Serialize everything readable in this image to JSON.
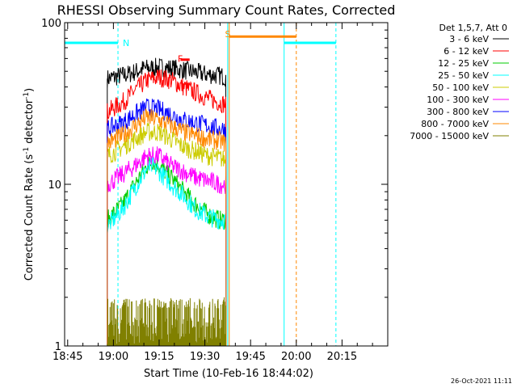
{
  "chart_data": {
    "type": "line",
    "title": "RHESSI Observing Summary Count Rates, Corrected",
    "xlabel": "Start Time (10-Feb-16 18:44:02)",
    "ylabel": "Corrected Count Rate (s",
    "ylabel_sup": "-1",
    "ylabel_tail": " detector",
    "ylabel_tail_sup": "-1",
    "ylabel_end": ")",
    "y_scale": "log",
    "ylim": [
      1,
      100
    ],
    "xlim_min": [
      -1,
      105
    ],
    "x_ticks_min": [
      0,
      15,
      30,
      45,
      60,
      75,
      90
    ],
    "x_tick_labels": [
      "18:45",
      "19:00",
      "19:15",
      "19:30",
      "19:45",
      "20:00",
      "20:15"
    ],
    "y_ticks": [
      1,
      10,
      100
    ],
    "y_tick_labels": [
      "1",
      "10",
      "100"
    ],
    "legend_title": "Det 1,5,7, Att 0",
    "legend_position": "right",
    "footer_date": "26-Oct-2021 11:11",
    "series": [
      {
        "name": "3 - 6 keV",
        "color": "#000000",
        "min": [
          [
            -1,
            null
          ],
          [
            13,
            null
          ],
          [
            13,
            45
          ],
          [
            20,
            48
          ],
          [
            25,
            52
          ],
          [
            30,
            53
          ],
          [
            35,
            52
          ],
          [
            40,
            50
          ],
          [
            45,
            48
          ],
          [
            50,
            47
          ],
          [
            52,
            46
          ],
          [
            52,
            null
          ]
        ]
      },
      {
        "name": "6 - 12 keV",
        "color": "#ff0000",
        "min": [
          [
            13,
            28
          ],
          [
            18,
            32
          ],
          [
            22,
            38
          ],
          [
            26,
            44
          ],
          [
            30,
            46
          ],
          [
            34,
            44
          ],
          [
            38,
            40
          ],
          [
            42,
            37
          ],
          [
            46,
            34
          ],
          [
            50,
            32
          ],
          [
            52,
            31
          ]
        ]
      },
      {
        "name": "12 - 25 keV",
        "color": "#00cc00",
        "min": [
          [
            13,
            6
          ],
          [
            18,
            7.5
          ],
          [
            22,
            10
          ],
          [
            26,
            13
          ],
          [
            28,
            14
          ],
          [
            30,
            13
          ],
          [
            34,
            11
          ],
          [
            38,
            9
          ],
          [
            42,
            7.5
          ],
          [
            46,
            6.5
          ],
          [
            50,
            6
          ],
          [
            52,
            6
          ]
        ]
      },
      {
        "name": "25 - 50 keV",
        "color": "#00ffff",
        "min": [
          [
            13,
            5.5
          ],
          [
            18,
            7
          ],
          [
            22,
            9.5
          ],
          [
            26,
            12.5
          ],
          [
            28,
            13
          ],
          [
            30,
            12
          ],
          [
            34,
            10
          ],
          [
            38,
            8.5
          ],
          [
            42,
            7
          ],
          [
            46,
            6.3
          ],
          [
            50,
            6
          ],
          [
            52,
            6
          ]
        ]
      },
      {
        "name": "50 - 100 keV",
        "color": "#cccc00",
        "min": [
          [
            13,
            15
          ],
          [
            18,
            17
          ],
          [
            22,
            19
          ],
          [
            26,
            21
          ],
          [
            30,
            21
          ],
          [
            34,
            19
          ],
          [
            38,
            17
          ],
          [
            42,
            16
          ],
          [
            46,
            15
          ],
          [
            50,
            14.5
          ],
          [
            52,
            14
          ]
        ]
      },
      {
        "name": "100 - 300 keV",
        "color": "#ff00ff",
        "min": [
          [
            13,
            10
          ],
          [
            18,
            11.5
          ],
          [
            22,
            13
          ],
          [
            26,
            15
          ],
          [
            30,
            15
          ],
          [
            34,
            13
          ],
          [
            38,
            12
          ],
          [
            42,
            11
          ],
          [
            46,
            10.5
          ],
          [
            50,
            10
          ],
          [
            52,
            10
          ]
        ]
      },
      {
        "name": "300 - 800 keV",
        "color": "#0000ff",
        "min": [
          [
            13,
            22
          ],
          [
            18,
            24
          ],
          [
            22,
            27
          ],
          [
            26,
            30
          ],
          [
            30,
            29
          ],
          [
            34,
            27
          ],
          [
            38,
            25
          ],
          [
            42,
            24
          ],
          [
            46,
            23
          ],
          [
            50,
            22
          ],
          [
            52,
            22
          ]
        ]
      },
      {
        "name": "800 - 7000 keV",
        "color": "#ff8800",
        "min": [
          [
            13,
            18
          ],
          [
            18,
            20
          ],
          [
            22,
            23
          ],
          [
            26,
            26
          ],
          [
            30,
            25
          ],
          [
            34,
            23
          ],
          [
            38,
            21
          ],
          [
            42,
            20
          ],
          [
            46,
            19
          ],
          [
            50,
            18.5
          ],
          [
            52,
            18
          ]
        ]
      },
      {
        "name": "7000 - 15000 keV",
        "color": "#808000",
        "min": [
          [
            13,
            1.5
          ],
          [
            20,
            1.7
          ],
          [
            28,
            2.2
          ],
          [
            34,
            1.6
          ],
          [
            40,
            1.5
          ],
          [
            46,
            1.4
          ],
          [
            52,
            1.3
          ]
        ]
      }
    ],
    "annotations": [
      {
        "label": "N",
        "color": "#00ffff",
        "x_min": 16.5,
        "y": 75
      },
      {
        "label": "F",
        "color": "#ff0000",
        "x_min": 34.5,
        "y": 60
      },
      {
        "label": "S",
        "color": "#ff8800",
        "x_min": 50,
        "y": 85
      }
    ],
    "night_bars": [
      {
        "color": "#00ffff",
        "x": [
          -1,
          16.5
        ],
        "y": 75
      },
      {
        "color": "#00ffff",
        "x": [
          71,
          88
        ],
        "y": 75
      }
    ],
    "saa_bars": [
      {
        "color": "#ff8800",
        "x": [
          53,
          75
        ],
        "y": 82
      }
    ],
    "flare_bar": {
      "color": "#ff0000",
      "x": [
        37,
        40
      ],
      "y": 59
    },
    "vlines_min": [
      {
        "x": -1,
        "color": "#00ffff",
        "style": "solid"
      },
      {
        "x": 16.5,
        "color": "#00ffff",
        "style": "dash"
      },
      {
        "x": 52.5,
        "color": "#00ffff",
        "style": "solid"
      },
      {
        "x": 53,
        "color": "#ff8800",
        "style": "solid"
      },
      {
        "x": 71,
        "color": "#00ffff",
        "style": "solid"
      },
      {
        "x": 75,
        "color": "#ff8800",
        "style": "dash"
      },
      {
        "x": 88,
        "color": "#00ffff",
        "style": "dash"
      }
    ]
  }
}
